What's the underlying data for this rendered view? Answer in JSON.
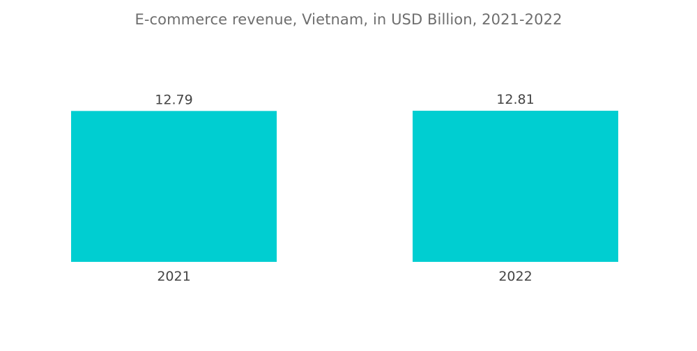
{
  "chart_data": {
    "type": "bar",
    "title": "E-commerce revenue, Vietnam, in USD Billion, 2021-2022",
    "categories": [
      "2021",
      "2022"
    ],
    "values": [
      12.79,
      12.81
    ],
    "data_labels": [
      "12.79",
      "12.81"
    ],
    "xlabel": "",
    "ylabel": "",
    "grid": false,
    "legend": "none",
    "bar_color": "#00CED1",
    "text_color": "#444444",
    "title_color": "#6e6e6e"
  }
}
